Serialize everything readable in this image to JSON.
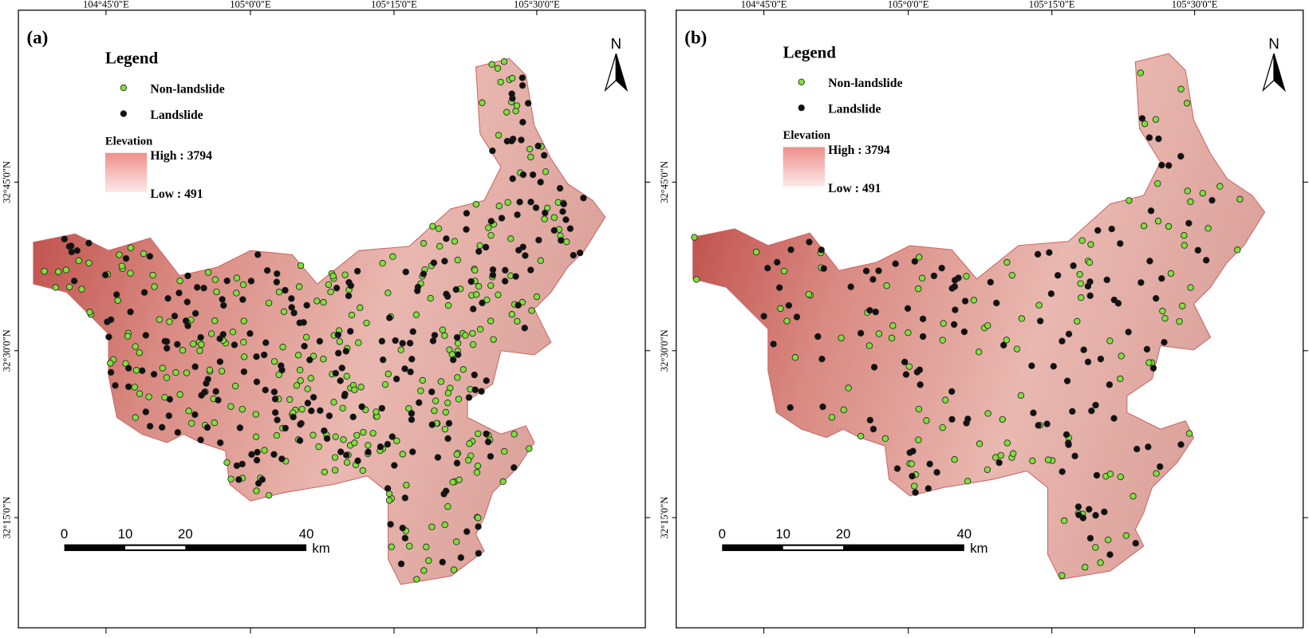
{
  "panels": [
    {
      "label": "(a)",
      "legend": {
        "title": "Legend",
        "items": [
          "Non-landslide",
          "Landslide"
        ],
        "elevation": {
          "title": "Elevation",
          "high": "High : 3794",
          "low": "Low : 491"
        }
      },
      "north": "N",
      "scale": {
        "ticks": [
          "0",
          "10",
          "20",
          "40"
        ],
        "unit": "km"
      },
      "lon_labels": [
        "104°45'0\"E",
        "105°0'0\"E",
        "105°15'0\"E",
        "105°30'0\"E"
      ],
      "lat_labels": [
        "32°45'0\"N",
        "32°30'0\"N",
        "32°15'0\"N"
      ]
    },
    {
      "label": "(b)",
      "legend": {
        "title": "Legend",
        "items": [
          "Non-landslide",
          "Landslide"
        ],
        "elevation": {
          "title": "Elevation",
          "high": "High : 3794",
          "low": "Low : 491"
        }
      },
      "north": "N",
      "scale": {
        "ticks": [
          "0",
          "10",
          "20",
          "40"
        ],
        "unit": "km"
      },
      "lon_labels": [
        "104°45'0\"E",
        "105°0'0\"E",
        "105°15'0\"E",
        "105°30'0\"E"
      ],
      "lat_labels": [
        "32°45'0\"N",
        "32°30'0\"N",
        "32°15'0\"N"
      ]
    }
  ]
}
